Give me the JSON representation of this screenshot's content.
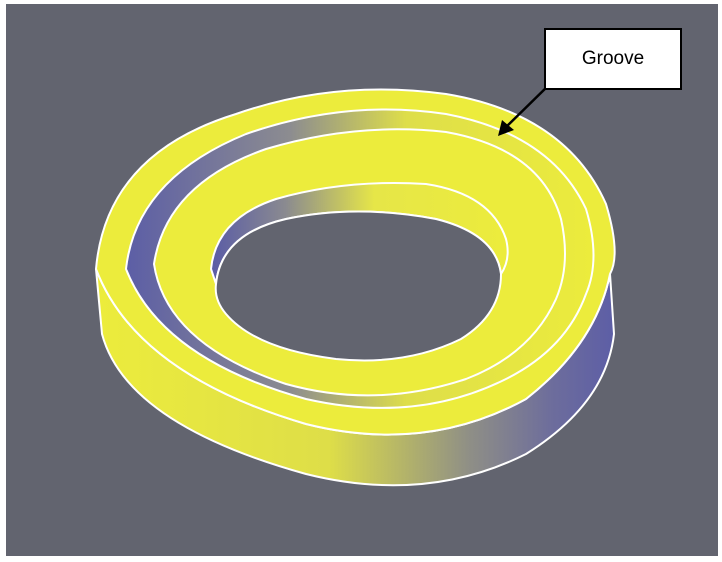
{
  "annotation": {
    "label": "Groove"
  },
  "colors": {
    "background": "#62646f",
    "ring_face": "#ecec3c",
    "ring_wall_shadow": "#6a6aa0",
    "outline": "#ffffff",
    "callout_border": "#000000"
  },
  "icons": {
    "callout_arrow": "arrow-icon"
  }
}
